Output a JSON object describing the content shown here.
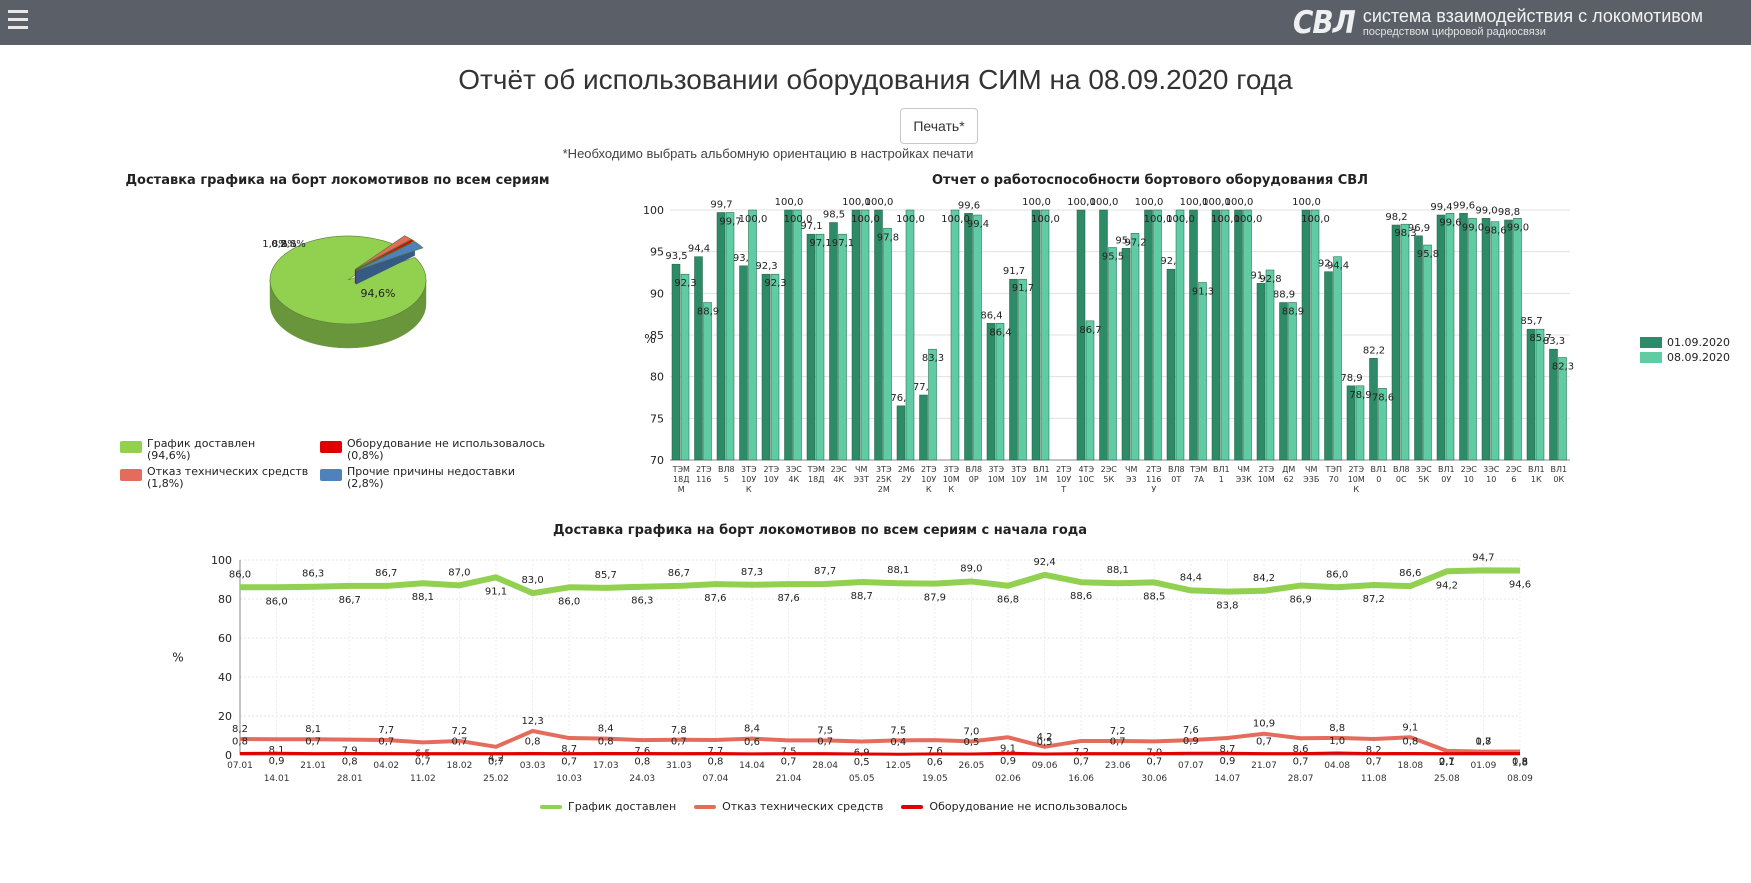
{
  "header": {
    "logo_text": "СВЛ",
    "title": "система взаимодействия с локомотивом",
    "subtitle": "посредством цифровой радиосвязи"
  },
  "page": {
    "title": "Отчёт об использовании оборудования СИМ на 08.09.2020 года",
    "print_label": "Печать*",
    "print_note": "*Необходимо выбрать альбомную ориентацию в настройках печати"
  },
  "colors": {
    "header_bg": "#5b6068",
    "green": "#92d050",
    "red_tech": "#e46c5d",
    "red_none": "#e00000",
    "blue_other": "#4f81bd",
    "bar_dark": "#2e8b67",
    "bar_light": "#5fcca4"
  },
  "chart_data": [
    {
      "type": "pie",
      "title": "Доставка графика на борт локомотивов по всем сериям",
      "slices": [
        {
          "name": "График доставлен",
          "value": 94.6,
          "label": "94,6%",
          "legend": "График доставлен",
          "legend_value": "(94,6%)",
          "color": "#92d050"
        },
        {
          "name": "Отказ технических средств",
          "value": 1.8,
          "label": "1,8%",
          "legend": "Отказ технических средств",
          "legend_value": "(1,8%)",
          "color": "#e46c5d"
        },
        {
          "name": "Оборудование не использовалось",
          "value": 0.8,
          "label": "0,8%",
          "legend": "Оборудование не использовалось",
          "legend_value": "(0,8%)",
          "color": "#e00000"
        },
        {
          "name": "Прочие причины недоставки",
          "value": 2.8,
          "label": "2,8%",
          "legend": "Прочие причины недоставки",
          "legend_value": "(2,8%)",
          "color": "#4f81bd"
        }
      ]
    },
    {
      "type": "bar",
      "title": "Отчет о работоспособности бортового оборудования СВЛ",
      "ylabel": "%",
      "ylim": [
        70,
        100
      ],
      "yticks": [
        "70",
        "75",
        "80",
        "85",
        "90",
        "95",
        "100"
      ],
      "categories": [
        [
          "ТЭМ",
          "18Д",
          "М"
        ],
        [
          "2ТЭ",
          "116"
        ],
        [
          "ВЛ8",
          "5"
        ],
        [
          "3ТЭ",
          "10У",
          "К"
        ],
        [
          "2ТЭ",
          "10У"
        ],
        [
          "3ЭС",
          "4К"
        ],
        [
          "ТЭМ",
          "18Д"
        ],
        [
          "2ЭС",
          "4К"
        ],
        [
          "ЧМ",
          "Э3Т"
        ],
        [
          "3ТЭ",
          "25К",
          "2М"
        ],
        [
          "2М6",
          "2У"
        ],
        [
          "2ТЭ",
          "10У",
          "К"
        ],
        [
          "3ТЭ",
          "10М",
          "К"
        ],
        [
          "ВЛ8",
          "0Р"
        ],
        [
          "3ТЭ",
          "10М"
        ],
        [
          "3ТЭ",
          "10У"
        ],
        [
          "ВЛ1",
          "1М"
        ],
        [
          "2ТЭ",
          "10У",
          "Т"
        ],
        [
          "4ТЭ",
          "10С"
        ],
        [
          "2ЭС",
          "5К"
        ],
        [
          "ЧМ",
          "Э3"
        ],
        [
          "2ТЭ",
          "116",
          "У"
        ],
        [
          "ВЛ8",
          "0Т"
        ],
        [
          "ТЭМ",
          "7А"
        ],
        [
          "ВЛ1",
          "1"
        ],
        [
          "ЧМ",
          "Э3К"
        ],
        [
          "2ТЭ",
          "10М"
        ],
        [
          "ДМ",
          "62"
        ],
        [
          "ЧМ",
          "Э3Б"
        ],
        [
          "ТЭП",
          "70"
        ],
        [
          "2ТЭ",
          "10М",
          "К"
        ],
        [
          "ВЛ1",
          "0"
        ],
        [
          "ВЛ8",
          "0С"
        ],
        [
          "3ЭС",
          "5К"
        ],
        [
          "ВЛ1",
          "0У"
        ],
        [
          "2ЭС",
          "10"
        ],
        [
          "3ЭС",
          "10"
        ],
        [
          "2ЭС",
          "6"
        ],
        [
          "ВЛ1",
          "1К"
        ],
        [
          "ВЛ1",
          "0К"
        ]
      ],
      "series": [
        {
          "name": "01.09.2020",
          "color": "#2e8b67",
          "values": [
            93.5,
            94.4,
            99.7,
            93.3,
            92.3,
            100.0,
            97.1,
            98.5,
            100.0,
            100.0,
            76.5,
            77.8,
            null,
            99.6,
            86.4,
            91.7,
            100.0,
            null,
            100.0,
            100.0,
            95.4,
            100.0,
            92.9,
            100.0,
            100.0,
            100.0,
            91.2,
            88.9,
            100.0,
            92.6,
            78.9,
            82.2,
            98.2,
            96.9,
            99.4,
            99.6,
            99.0,
            98.8,
            85.7,
            83.3
          ],
          "labels": [
            "93,5",
            "94,4",
            "99,7",
            "93,3",
            "92,3",
            "100,0",
            "97,1",
            "98,5",
            "100,0",
            "100,0",
            "76,5",
            "77,8",
            "",
            "99,6",
            "86,4",
            "91,7",
            "100,0",
            "",
            "100,0",
            "100,0",
            "95,4",
            "100,0",
            "92,9",
            "100,0",
            "100,0",
            "100,0",
            "91,2",
            "88,9",
            "100,0",
            "92,6",
            "78,9",
            "82,2",
            "98,2",
            "96,9",
            "99,4",
            "99,6",
            "99,0",
            "98,8",
            "85,7",
            "83,3"
          ]
        },
        {
          "name": "08.09.2020",
          "color": "#5fcca4",
          "values": [
            92.3,
            88.9,
            99.7,
            100.0,
            92.3,
            100.0,
            97.1,
            97.1,
            100.0,
            97.8,
            100.0,
            83.3,
            100.0,
            99.4,
            86.4,
            91.7,
            100.0,
            null,
            86.7,
            95.5,
            97.2,
            100.0,
            100.0,
            91.3,
            100.0,
            100.0,
            92.8,
            88.9,
            100.0,
            94.4,
            78.9,
            78.6,
            98.3,
            95.8,
            99.6,
            99.0,
            98.6,
            99.0,
            85.7,
            82.3
          ],
          "labels": [
            "92,3",
            "88,9",
            "99,7",
            "100,0",
            "92,3",
            "100,0",
            "97,1",
            "97,1",
            "100,0",
            "97,8",
            "100,0",
            "83,3",
            "100,0",
            "99,4",
            "86,4",
            "91,7",
            "100,0",
            "",
            "86,7",
            "95,5",
            "97,2",
            "100,0",
            "100,0",
            "91,3",
            "100,0",
            "100,0",
            "92,8",
            "88,9",
            "100,0",
            "94,4",
            "78,9",
            "78,6",
            "98,3",
            "95,8",
            "99,6",
            "99,0",
            "98,6",
            "99,0",
            "85,7",
            "82,3"
          ]
        }
      ]
    },
    {
      "type": "line",
      "title": "Доставка графика на борт локомотивов по всем сериям с начала года",
      "ylabel": "%",
      "ylim": [
        0,
        100
      ],
      "yticks": [
        "0",
        "20",
        "40",
        "60",
        "80",
        "100"
      ],
      "x_labels": [
        "07.01",
        "14.01",
        "21.01",
        "28.01",
        "04.02",
        "11.02",
        "18.02",
        "25.02",
        "03.03",
        "10.03",
        "17.03",
        "24.03",
        "31.03",
        "07.04",
        "14.04",
        "21.04",
        "28.04",
        "05.05",
        "12.05",
        "19.05",
        "26.05",
        "02.06",
        "09.06",
        "16.06",
        "23.06",
        "30.06",
        "07.07",
        "14.07",
        "21.07",
        "28.07",
        "04.08",
        "11.08",
        "18.08",
        "25.08",
        "01.09",
        "08.09"
      ],
      "series": [
        {
          "name": "График доставлен",
          "color": "#92d050",
          "values": [
            86.0,
            86.0,
            86.3,
            86.7,
            86.7,
            88.1,
            87.0,
            91.1,
            83.0,
            86.0,
            85.7,
            86.3,
            86.7,
            87.6,
            87.3,
            87.6,
            87.7,
            88.7,
            88.1,
            87.9,
            89.0,
            86.8,
            92.4,
            88.6,
            88.1,
            88.5,
            84.4,
            83.8,
            84.2,
            86.9,
            86.0,
            87.2,
            86.6,
            94.2,
            94.7,
            94.6
          ],
          "labels": [
            "86,0",
            "86,0",
            "86,3",
            "86,7",
            "86,7",
            "88,1",
            "87,0",
            "91,1",
            "83,0",
            "86,0",
            "85,7",
            "86,3",
            "86,7",
            "87,6",
            "87,3",
            "87,6",
            "87,7",
            "88,7",
            "88,1",
            "87,9",
            "89,0",
            "86,8",
            "92,4",
            "88,6",
            "88,1",
            "88,5",
            "84,4",
            "83,8",
            "84,2",
            "86,9",
            "86,0",
            "87,2",
            "86,6",
            "94,2",
            "94,7",
            "94,6"
          ]
        },
        {
          "name": "Отказ технических средств",
          "color": "#e46c5d",
          "values": [
            8.2,
            8.1,
            8.1,
            7.9,
            7.7,
            6.5,
            7.2,
            4.2,
            12.3,
            8.7,
            8.4,
            7.6,
            7.8,
            7.7,
            8.4,
            7.5,
            7.5,
            6.9,
            7.5,
            7.6,
            7.0,
            9.1,
            4.2,
            7.2,
            7.2,
            7.0,
            7.6,
            8.7,
            10.9,
            8.6,
            8.8,
            8.2,
            9.1,
            2.1,
            1.7,
            1.8
          ],
          "labels": [
            "8,2",
            "8,1",
            "8,1",
            "7,9",
            "7,7",
            "6,5",
            "7,2",
            "4,2",
            "12,3",
            "8,7",
            "8,4",
            "7,6",
            "7,8",
            "7,7",
            "8,4",
            "7,5",
            "7,5",
            "6,9",
            "7,5",
            "7,6",
            "7,0",
            "9,1",
            "4,2",
            "7,2",
            "7,2",
            "7,0",
            "7,6",
            "8,7",
            "10,9",
            "8,6",
            "8,8",
            "8,2",
            "9,1",
            "2,1",
            "1,7",
            "1,8"
          ]
        },
        {
          "name": "Оборудование не использовалось",
          "color": "#e00000",
          "values": [
            0.8,
            0.9,
            0.7,
            0.8,
            0.7,
            0.7,
            0.7,
            0.7,
            0.8,
            0.7,
            0.8,
            0.8,
            0.7,
            0.8,
            0.6,
            0.7,
            0.7,
            0.5,
            0.4,
            0.6,
            0.5,
            0.9,
            0.5,
            0.7,
            0.7,
            0.7,
            0.9,
            0.9,
            0.7,
            0.7,
            1.0,
            0.7,
            0.8,
            0.7,
            0.8,
            0.8
          ],
          "labels": [
            "0,8",
            "0,9",
            "0,7",
            "0,8",
            "0,7",
            "0,7",
            "0,7",
            "0,7",
            "0,8",
            "0,7",
            "0,8",
            "0,8",
            "0,7",
            "0,8",
            "0,6",
            "0,7",
            "0,7",
            "0,5",
            "0,4",
            "0,6",
            "0,5",
            "0,9",
            "0,5",
            "0,7",
            "0,7",
            "0,7",
            "0,9",
            "0,9",
            "0,7",
            "0,7",
            "1,0",
            "0,7",
            "0,8",
            "0,7",
            "0,8",
            "0,8"
          ]
        }
      ]
    }
  ]
}
